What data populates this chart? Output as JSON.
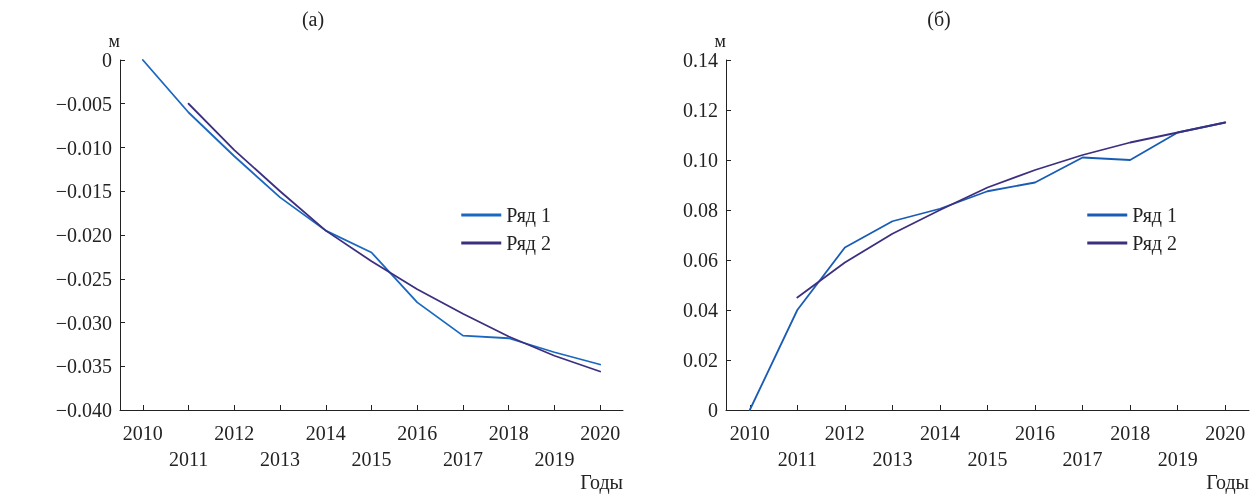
{
  "chart_data": [
    {
      "type": "line",
      "title": "(а)",
      "ylabel": "м",
      "xlabel": "Годы",
      "categories": [
        "2010",
        "2011",
        "2012",
        "2013",
        "2014",
        "2015",
        "2016",
        "2017",
        "2018",
        "2019",
        "2020"
      ],
      "series": [
        {
          "name": "Ряд 1",
          "color": "#1a68c0",
          "values": [
            0,
            -0.006,
            -0.011,
            -0.0157,
            -0.0195,
            -0.022,
            -0.0277,
            -0.0315,
            -0.0318,
            -0.0334,
            -0.0348
          ]
        },
        {
          "name": "Ряд 2",
          "color": "#3d2f80",
          "values": [
            null,
            -0.005,
            -0.0103,
            -0.015,
            -0.0195,
            -0.023,
            -0.0262,
            -0.029,
            -0.0316,
            -0.0338,
            -0.0356
          ]
        }
      ],
      "ylim": [
        -0.04,
        0
      ],
      "yticks": [
        {
          "value": -0.04,
          "label": "−0.040"
        },
        {
          "value": -0.035,
          "label": "−0.035"
        },
        {
          "value": -0.03,
          "label": "−0.030"
        },
        {
          "value": -0.025,
          "label": "−0.025"
        },
        {
          "value": -0.02,
          "label": "−0.020"
        },
        {
          "value": -0.015,
          "label": "−0.015"
        },
        {
          "value": -0.01,
          "label": "−0.010"
        },
        {
          "value": -0.005,
          "label": "−0.005"
        },
        0
      ],
      "grid": false,
      "legend": "right",
      "marker": "none",
      "line_style": "solid"
    },
    {
      "type": "line",
      "title": "(б)",
      "ylabel": "м",
      "xlabel": "Годы",
      "categories": [
        "2010",
        "2011",
        "2012",
        "2013",
        "2014",
        "2015",
        "2016",
        "2017",
        "2018",
        "2019",
        "2020"
      ],
      "series": [
        {
          "name": "Ряд 1",
          "color": "#1a5cb5",
          "values": [
            0,
            0.04,
            0.065,
            0.0755,
            0.0805,
            0.0875,
            0.091,
            0.101,
            0.1,
            0.111,
            0.115
          ]
        },
        {
          "name": "Ряд 2",
          "color": "#3d2f80",
          "values": [
            null,
            0.045,
            0.059,
            0.0705,
            0.08,
            0.089,
            0.096,
            0.102,
            0.107,
            0.111,
            0.115
          ]
        }
      ],
      "ylim": [
        0,
        0.14
      ],
      "yticks": [
        0,
        {
          "value": 0.02,
          "label": "0.02"
        },
        {
          "value": 0.04,
          "label": "0.04"
        },
        {
          "value": 0.06,
          "label": "0.06"
        },
        {
          "value": 0.08,
          "label": "0.08"
        },
        {
          "value": 0.1,
          "label": "0.10"
        },
        {
          "value": 0.12,
          "label": "0.12"
        },
        {
          "value": 0.14,
          "label": "0.14"
        }
      ],
      "grid": false,
      "legend": "right",
      "marker": "none",
      "line_style": "solid"
    }
  ]
}
